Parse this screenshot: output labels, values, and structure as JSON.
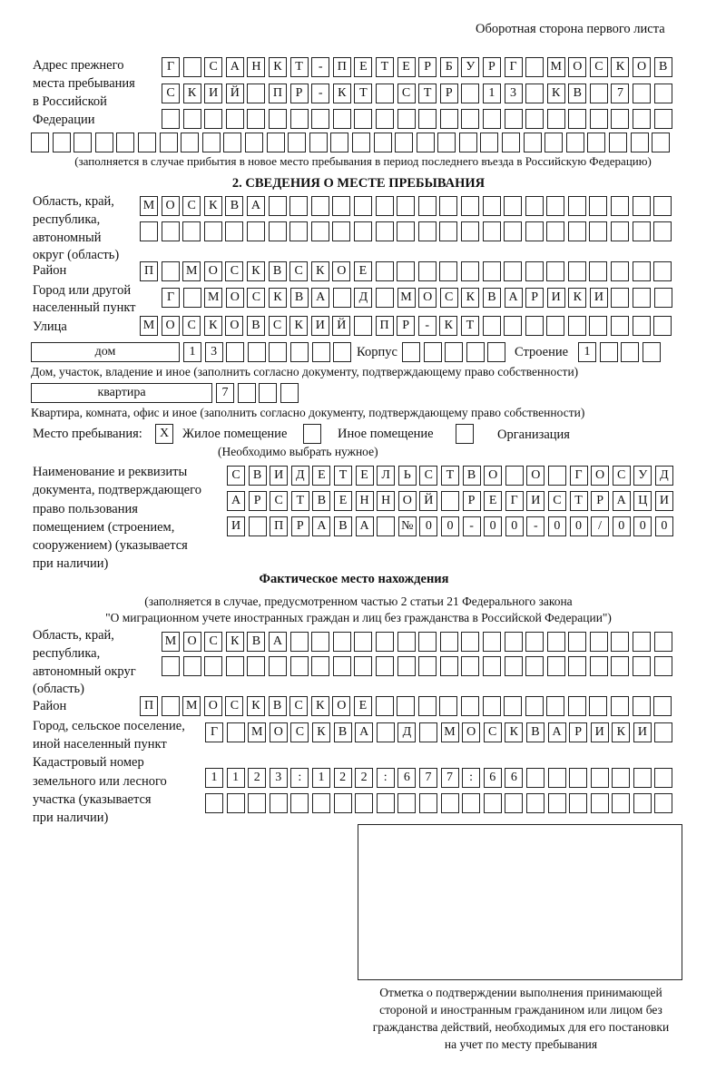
{
  "header": "Оборотная сторона первого листа",
  "prev_address": {
    "label": [
      "Адрес прежнего",
      "места пребывания",
      "в Российской",
      "Федерации"
    ],
    "rows": [
      "Г САНКТ-ПЕТЕРБУРГ МОСКОВ",
      "СКИЙ ПР-КТ СТР 13 КВ 7  ",
      "                        ",
      "                              "
    ],
    "note": "(заполняется в случае прибытия в новое место пребывания в период последнего въезда в Российскую Федерацию)"
  },
  "section2": {
    "title": "2. СВЕДЕНИЯ О МЕСТЕ ПРЕБЫВАНИЯ",
    "region_label": [
      "Область, край,",
      "республика,",
      "автономный",
      "округ (область)"
    ],
    "region_rows": [
      "МОСКВА                   ",
      "                         "
    ],
    "district_label": "Район",
    "district_row": "П МОСКВСКОЕ              ",
    "city_label": [
      "Город или другой",
      "населенный пункт"
    ],
    "city_row": "Г МОСКВА Д МОСКВАРИКИ   ",
    "street_label": "Улица",
    "street_row": "МОСКОВСКИЙ ПР-КТ         ",
    "house_type": "дом",
    "house_row": "13      ",
    "korpus_label": "Корпус",
    "korpus_row": "     ",
    "building_label": "Строение",
    "building_row": "1   ",
    "house_caption": "Дом, участок, владение и иное (заполнить согласно документу, подтверждающему право собственности)",
    "flat_type": "квартира",
    "flat_row": "7   ",
    "flat_caption": "Квартира, комната, офис и иное (заполнить согласно документу, подтверждающему право собственности)",
    "stay_label": "Место пребывания:",
    "stay_options": [
      {
        "label": "Жилое помещение",
        "mark": "X"
      },
      {
        "label": "Иное помещение",
        "mark": ""
      },
      {
        "label": "Организация",
        "mark": ""
      }
    ],
    "stay_hint": "(Необходимо выбрать нужное)",
    "doc_label": [
      "Наименование и реквизиты",
      "документа, подтверждающего",
      "право пользования",
      "помещением (строением,",
      "сооружением) (указывается",
      "при наличии)"
    ],
    "doc_rows": [
      "СВИДЕТЕЛЬСТВО О ГОСУД",
      "АРСТВЕННОЙ РЕГИСТРАЦИ",
      "И ПРАВА №00-00-00/000"
    ]
  },
  "actual": {
    "title": "Фактическое место нахождения",
    "note": [
      "(заполняется в случае, предусмотренном частью 2 статьи 21 Федерального закона",
      "\"О миграционном учете иностранных граждан и лиц без гражданства в Российской Федерации\")"
    ],
    "region_label": [
      "Область, край,",
      "республика,",
      "автономный округ",
      "(область)"
    ],
    "region_rows": [
      "МОСКВА                  ",
      "                        "
    ],
    "district_label": "Район",
    "district_row": "П МОСКВСКОЕ              ",
    "city_label": [
      "Город, сельское поселение,",
      "иной населенный пункт"
    ],
    "city_row": "Г МОСКВА Д МОСКВАРИКИ ",
    "cadastre_label": [
      "Кадастровый номер",
      "земельного или лесного",
      "участка (указывается",
      "при наличии)"
    ],
    "cadastre_rows": [
      "1123:122:677:66       ",
      "                      "
    ]
  },
  "confirmation": {
    "caption": [
      "Отметка о подтверждении выполнения принимающей",
      "стороной и иностранным гражданином или лицом без",
      "гражданства действий, необходимых для его постановки",
      "на учет по месту пребывания"
    ]
  }
}
